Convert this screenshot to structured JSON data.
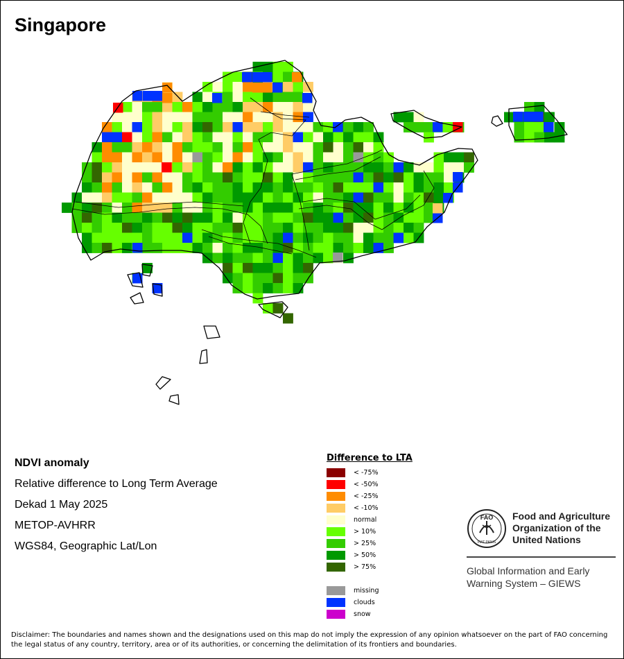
{
  "map_title": "Singapore",
  "info": {
    "heading": "NDVI anomaly",
    "line1": "Relative difference to Long Term Average",
    "line2": "Dekad 1 May 2025",
    "line3": "METOP-AVHRR",
    "line4": "WGS84, Geographic Lat/Lon"
  },
  "legend": {
    "title": "Difference to LTA",
    "classes": [
      {
        "label": "< -75%",
        "color": "#8b0000"
      },
      {
        "label": "< -50%",
        "color": "#ff0000"
      },
      {
        "label": "< -25%",
        "color": "#ff8c00"
      },
      {
        "label": "< -10%",
        "color": "#ffcc66"
      },
      {
        "label": "normal",
        "color": "#ffffcc"
      },
      {
        "label": "> 10%",
        "color": "#66ff00"
      },
      {
        "label": "> 25%",
        "color": "#33cc00"
      },
      {
        "label": "> 50%",
        "color": "#009900"
      },
      {
        "label": "> 75%",
        "color": "#336600"
      }
    ],
    "extra": [
      {
        "label": "missing",
        "color": "#999999"
      },
      {
        "label": "clouds",
        "color": "#0033ff"
      },
      {
        "label": "snow",
        "color": "#cc00cc"
      }
    ]
  },
  "organization": {
    "name": "Food and Agriculture Organization of the United Nations",
    "logo_text": "FAO",
    "logo_motto": "FIAT PANIS",
    "system": "Global Information and Early Warning System – GIEWS"
  },
  "disclaimer": "Disclaimer: The boundaries and names shown and the designations used on this map do not imply the expression of any opinion whatsoever on the part of FAO concerning the legal status of any country, territory, area or of its authorities, or concerning the delimitation of its frontiers and boundaries.",
  "colors": {
    "frame": "#000000",
    "boundary": "#000000"
  }
}
